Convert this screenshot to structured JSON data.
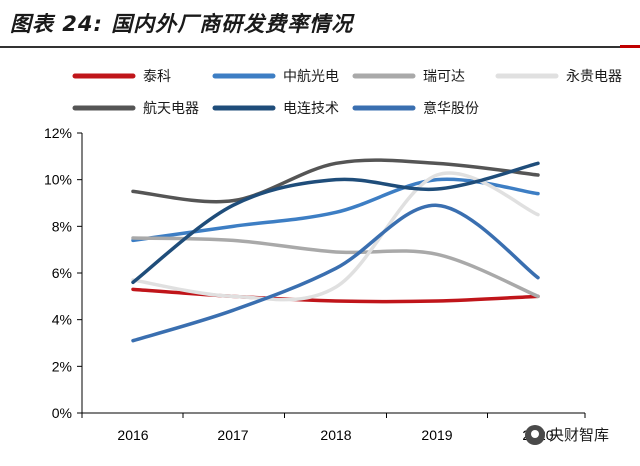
{
  "title": "图表 24: 国内外厂商研发费率情况",
  "watermark": "央财智库",
  "chart_data": {
    "type": "line",
    "categories": [
      "2016",
      "2017",
      "2018",
      "2019",
      "2020"
    ],
    "ylim": [
      0,
      12
    ],
    "yticks": [
      0,
      2,
      4,
      6,
      8,
      10,
      12
    ],
    "ytick_labels": [
      "0%",
      "2%",
      "4%",
      "6%",
      "8%",
      "10%",
      "12%"
    ],
    "grid": false,
    "legend_position": "top",
    "series": [
      {
        "name": "泰科",
        "color": "#c0151a",
        "values": [
          5.3,
          5.0,
          4.8,
          4.8,
          5.0
        ]
      },
      {
        "name": "中航光电",
        "color": "#3d7ec4",
        "values": [
          7.4,
          8.0,
          8.6,
          10.0,
          9.4
        ]
      },
      {
        "name": "瑞可达",
        "color": "#a9a9a9",
        "values": [
          7.5,
          7.4,
          6.9,
          6.8,
          5.0
        ]
      },
      {
        "name": "永贵电器",
        "color": "#e0e0e0",
        "values": [
          5.7,
          5.0,
          5.4,
          10.2,
          8.5
        ]
      },
      {
        "name": "航天电器",
        "color": "#555555",
        "values": [
          9.5,
          9.1,
          10.7,
          10.7,
          10.2
        ]
      },
      {
        "name": "电连技术",
        "color": "#1f4d7a",
        "values": [
          5.6,
          8.9,
          10.0,
          9.6,
          10.7
        ]
      },
      {
        "name": "意华股份",
        "color": "#3a6fb0",
        "values": [
          3.1,
          4.4,
          6.2,
          8.9,
          5.8
        ]
      }
    ]
  }
}
